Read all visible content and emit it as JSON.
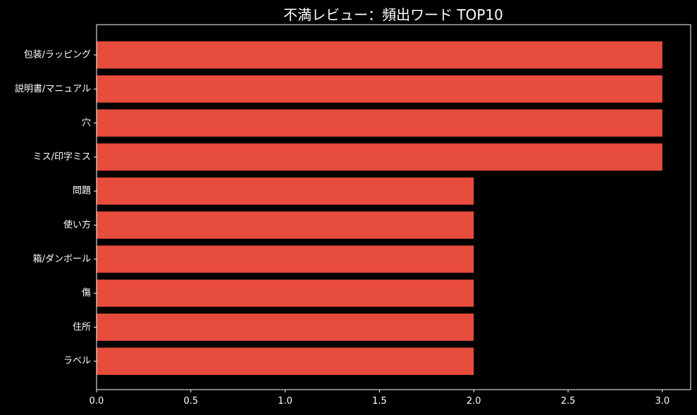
{
  "chart_data": {
    "type": "bar",
    "orientation": "horizontal",
    "title": "不満レビュー：頻出ワード TOP10",
    "xlabel": "",
    "ylabel": "",
    "categories": [
      "包装/ラッピング",
      "説明書/マニュアル",
      "穴",
      "ミス/印字ミス",
      "問題",
      "使い方",
      "箱/ダンボール",
      "傷",
      "住所",
      "ラベル"
    ],
    "values": [
      3,
      3,
      3,
      3,
      2,
      2,
      2,
      2,
      2,
      2
    ],
    "xlim": [
      0,
      3.15
    ],
    "xticks": [
      0.0,
      0.5,
      1.0,
      1.5,
      2.0,
      2.5,
      3.0
    ],
    "xtick_labels": [
      "0.0",
      "0.5",
      "1.0",
      "1.5",
      "2.0",
      "2.5",
      "3.0"
    ],
    "grid": false,
    "legend": "none"
  },
  "colors": {
    "background": "#000000",
    "bar": "#e74c3c",
    "axis": "#ffffff",
    "text": "#ffffff"
  }
}
